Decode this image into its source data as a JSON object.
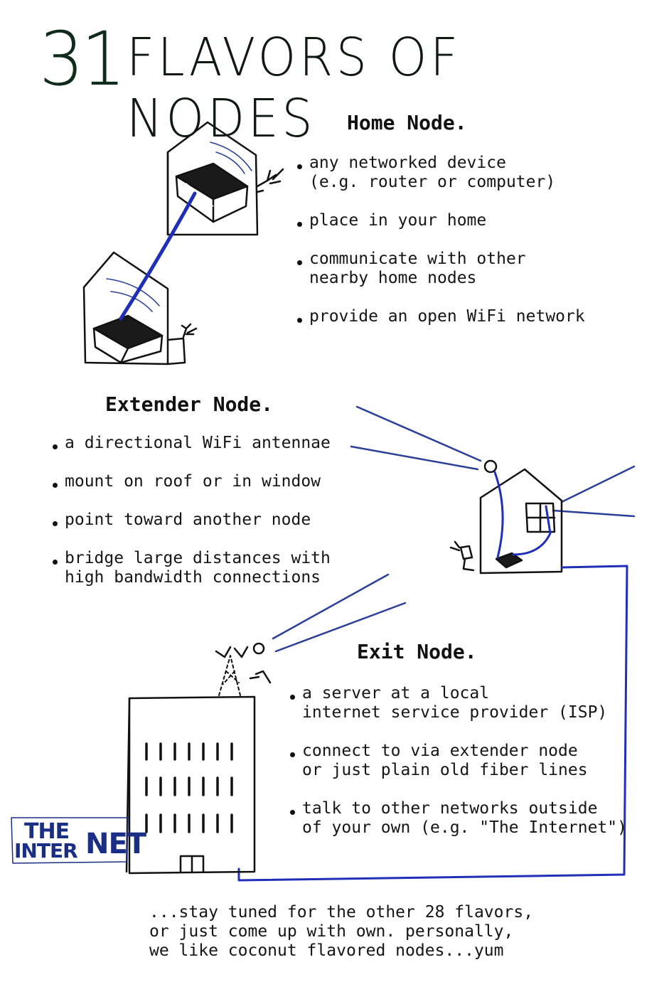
{
  "title": {
    "number": "31",
    "text": "FLAVORS OF NODES"
  },
  "sections": {
    "home": {
      "heading": "Home Node.",
      "items": [
        "any networked device\n(e.g. router or computer)",
        "place in your home",
        "communicate with other\nnearby home nodes",
        "provide an open WiFi network"
      ]
    },
    "extender": {
      "heading": "Extender Node.",
      "items": [
        "a directional WiFi antennae",
        "mount on roof or in window",
        "point toward another node",
        "bridge large distances with\nhigh bandwidth connections"
      ]
    },
    "exit": {
      "heading": "Exit Node.",
      "items": [
        "a server at a local\ninternet service provider (ISP)",
        "connect to via extender node\nor just plain old fiber lines",
        "talk to other networks outside\nof your own (e.g. \"The Internet\")"
      ]
    }
  },
  "internet_sign": {
    "line1": "THE",
    "line2_a": "INTER",
    "line2_b": "NET"
  },
  "footer": "...stay tuned for the other 28 flavors,\nor just come up with own. personally,\nwe like coconut flavored nodes...yum",
  "colors": {
    "cable": "#1f2fb8",
    "signal": "#2a3f9a",
    "ink": "#111111",
    "accent": "#1f6a47"
  }
}
